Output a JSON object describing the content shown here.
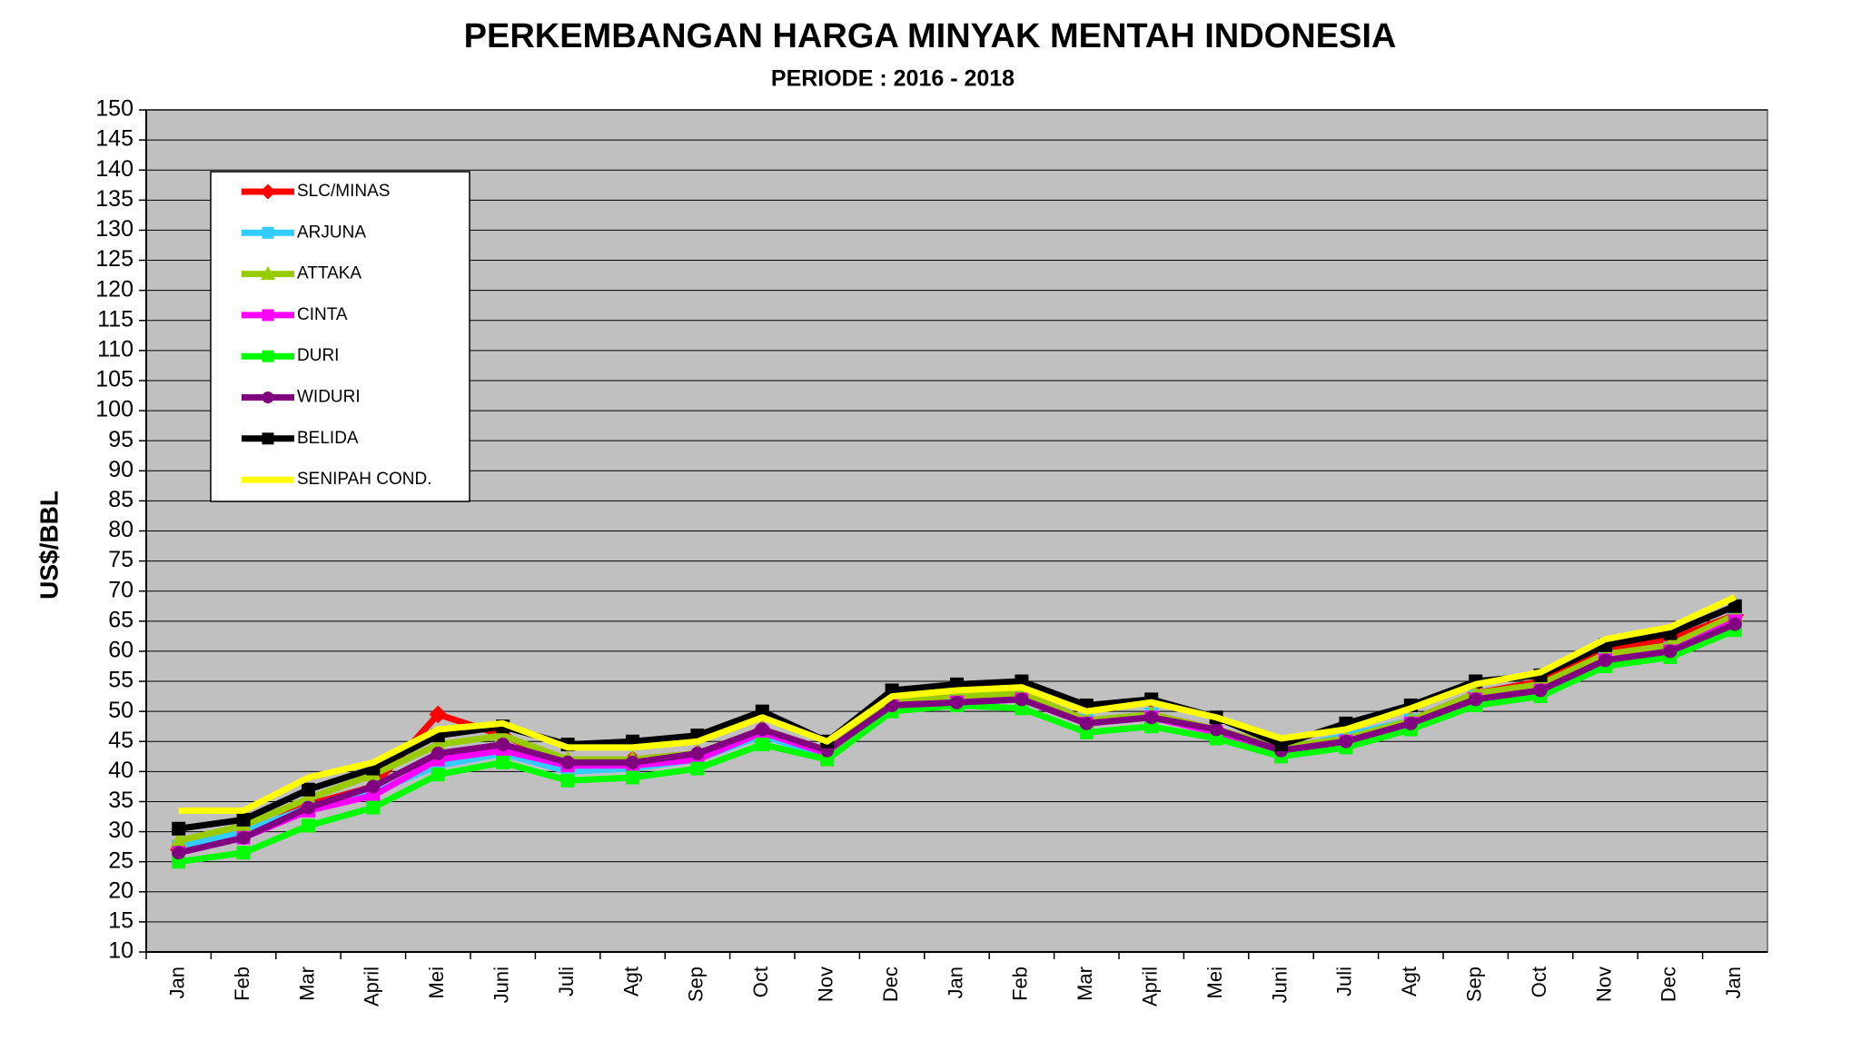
{
  "chart_data": {
    "type": "line",
    "title": "PERKEMBANGAN HARGA MINYAK MENTAH INDONESIA",
    "subtitle": "PERIODE : 2016 - 2018",
    "y_label": "US$/BBL",
    "categories": [
      "Jan",
      "Feb",
      "Mar",
      "April",
      "Mei",
      "Juni",
      "Juli",
      "Agt",
      "Sep",
      "Oct",
      "Nov",
      "Dec",
      "Jan",
      "Feb",
      "Mar",
      "April",
      "Mei",
      "Juni",
      "Juli",
      "Agt",
      "Sep",
      "Oct",
      "Nov",
      "Dec",
      "Jan"
    ],
    "ylim": [
      10,
      150
    ],
    "yticks": [
      10,
      15,
      20,
      25,
      30,
      35,
      40,
      45,
      50,
      55,
      60,
      65,
      70,
      75,
      80,
      85,
      90,
      95,
      100,
      105,
      110,
      115,
      120,
      125,
      130,
      135,
      140,
      145,
      150
    ],
    "grid": true,
    "legend_position": "upper-left",
    "series": [
      {
        "name": "SLC/MINAS",
        "color": "#ff0000",
        "marker": "diamond",
        "values": [
          27,
          29.5,
          34.5,
          37.5,
          49.5,
          46,
          41.5,
          42,
          43,
          47,
          43.5,
          51.5,
          52,
          53,
          48.5,
          49.5,
          47,
          44,
          45.5,
          48.5,
          53,
          55,
          60,
          62,
          66
        ]
      },
      {
        "name": "ARJUNA",
        "color": "#33ccff",
        "marker": "square",
        "values": [
          27.5,
          30,
          34,
          36.5,
          41,
          43,
          40,
          40.5,
          42,
          46,
          42.5,
          51,
          52,
          52,
          48.5,
          49.5,
          46.5,
          43.5,
          46,
          48.5,
          52.5,
          54,
          59,
          60.5,
          66
        ]
      },
      {
        "name": "ATTAKA",
        "color": "#99cc00",
        "marker": "triangle",
        "values": [
          28.5,
          31,
          35.5,
          39.5,
          44.5,
          46,
          42,
          42,
          43,
          47,
          43.5,
          51.5,
          52.5,
          53,
          48.5,
          49.5,
          47,
          44,
          45.5,
          48.5,
          53,
          54.5,
          59.5,
          61,
          66
        ]
      },
      {
        "name": "CINTA",
        "color": "#ff00ff",
        "marker": "square",
        "values": [
          26.5,
          29,
          33.5,
          36,
          42,
          43.5,
          41,
          41,
          42,
          46.5,
          43,
          51,
          51.5,
          52,
          48,
          49,
          46.5,
          43.5,
          45,
          48,
          52,
          53.5,
          58.5,
          60,
          65
        ]
      },
      {
        "name": "DURI",
        "color": "#00ff00",
        "marker": "square",
        "values": [
          25,
          26.5,
          31,
          34,
          39.5,
          41.5,
          38.5,
          39,
          40.5,
          44.5,
          42,
          50,
          51,
          50.5,
          46.5,
          47.5,
          45.5,
          42.5,
          44,
          47,
          51,
          52.5,
          57.5,
          59,
          63.5
        ]
      },
      {
        "name": "WIDURI",
        "color": "#800080",
        "marker": "circle",
        "values": [
          26.5,
          29,
          34,
          37.5,
          43,
          44.5,
          41.5,
          41.5,
          43,
          47,
          43.5,
          51,
          51.5,
          52,
          48,
          49,
          47,
          43.5,
          45,
          48,
          52,
          53.5,
          58.5,
          60,
          64.5
        ]
      },
      {
        "name": "BELIDA",
        "color": "#000000",
        "marker": "square",
        "values": [
          30.5,
          32,
          37,
          40.5,
          46,
          47.5,
          44.5,
          45,
          46,
          50,
          45,
          53.5,
          54.5,
          55,
          51,
          52,
          49,
          44.5,
          48,
          51,
          55,
          56,
          61,
          63,
          67.5
        ]
      },
      {
        "name": "SENIPAH COND.",
        "color": "#ffff00",
        "marker": "none",
        "values": [
          33.5,
          33.5,
          39,
          41.5,
          47,
          48,
          44,
          44,
          45,
          49,
          45,
          52.5,
          53.5,
          54,
          50,
          51.5,
          49,
          45.5,
          47,
          50.5,
          54.5,
          56.5,
          62,
          64,
          69
        ]
      }
    ]
  }
}
